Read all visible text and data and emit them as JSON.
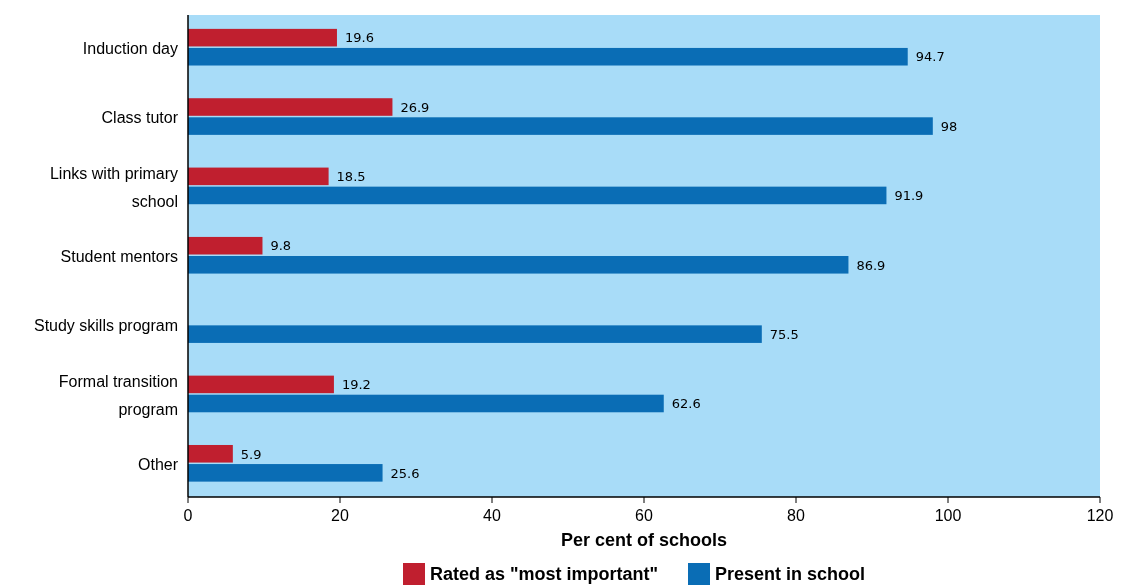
{
  "chart_data": {
    "type": "bar",
    "orientation": "horizontal",
    "xlabel": "Per cent of schools",
    "categories": [
      "Induction day",
      "Class tutor",
      "Links with primary school",
      "Student mentors",
      "Study skills program",
      "Formal transition program",
      "Other"
    ],
    "series": [
      {
        "name": "Rated as \"most important\"",
        "color": "#c01f2f",
        "values": [
          19.6,
          26.9,
          18.5,
          9.8,
          null,
          19.2,
          5.9
        ]
      },
      {
        "name": "Present in school",
        "color": "#0a6db5",
        "values": [
          94.7,
          98,
          91.9,
          86.9,
          75.5,
          62.6,
          25.6
        ]
      }
    ],
    "xlim": [
      0,
      120
    ],
    "xticks": [
      0,
      20,
      40,
      60,
      80,
      100,
      120
    ],
    "data_labels": true,
    "legend": "bottom",
    "grid": false
  }
}
